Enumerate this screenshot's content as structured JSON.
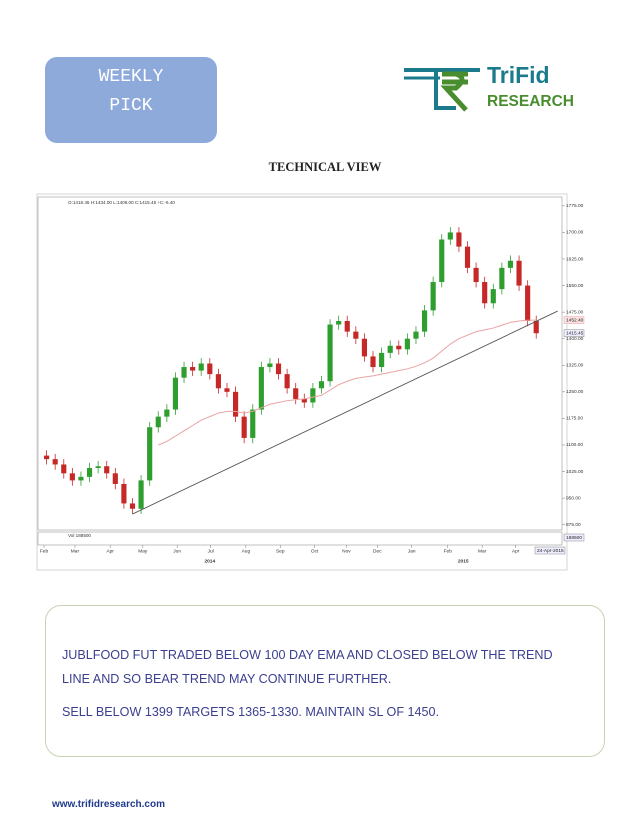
{
  "header": {
    "badge": [
      "WEEKLY",
      "PICK"
    ],
    "logo": {
      "name": "TriFid",
      "tagline": "RESEARCH"
    }
  },
  "section_title": "TECHNICAL VIEW",
  "chart_data": {
    "type": "candlestick",
    "info": "O:1418.45 H:1434.00 L:1406.00 C:1415.45 ÷C:-6.40",
    "open": [
      1070,
      1060,
      1045,
      1020,
      1000,
      1010,
      1035,
      1040,
      1020,
      990,
      935,
      920,
      1000,
      1150,
      1180,
      1200,
      1290,
      1320,
      1310,
      1330,
      1300,
      1260,
      1250,
      1180,
      1120,
      1200,
      1320,
      1330,
      1300,
      1260,
      1230,
      1220,
      1260,
      1280,
      1440,
      1450,
      1420,
      1400,
      1350,
      1320,
      1360,
      1380,
      1370,
      1400,
      1420,
      1480,
      1560,
      1680,
      1700,
      1660,
      1600,
      1560,
      1500,
      1540,
      1600,
      1620,
      1550,
      1450
    ],
    "high": [
      1085,
      1075,
      1060,
      1035,
      1025,
      1050,
      1055,
      1055,
      1035,
      1005,
      950,
      1015,
      1165,
      1195,
      1215,
      1305,
      1335,
      1335,
      1345,
      1345,
      1315,
      1275,
      1265,
      1195,
      1215,
      1335,
      1345,
      1345,
      1315,
      1275,
      1245,
      1275,
      1295,
      1455,
      1465,
      1465,
      1435,
      1415,
      1365,
      1375,
      1395,
      1395,
      1415,
      1435,
      1495,
      1575,
      1695,
      1715,
      1715,
      1675,
      1615,
      1575,
      1555,
      1615,
      1635,
      1635,
      1565,
      1465
    ],
    "low": [
      1045,
      1030,
      1005,
      985,
      985,
      995,
      1020,
      1005,
      975,
      920,
      905,
      905,
      985,
      1135,
      1165,
      1185,
      1275,
      1295,
      1295,
      1285,
      1245,
      1235,
      1165,
      1105,
      1105,
      1185,
      1305,
      1285,
      1245,
      1215,
      1205,
      1205,
      1245,
      1265,
      1425,
      1405,
      1385,
      1335,
      1305,
      1305,
      1345,
      1355,
      1355,
      1385,
      1405,
      1465,
      1545,
      1665,
      1645,
      1585,
      1545,
      1485,
      1485,
      1525,
      1585,
      1535,
      1435,
      1400
    ],
    "close": [
      1060,
      1045,
      1020,
      1000,
      1010,
      1035,
      1040,
      1020,
      990,
      935,
      920,
      1000,
      1150,
      1180,
      1200,
      1290,
      1320,
      1310,
      1330,
      1300,
      1260,
      1250,
      1180,
      1120,
      1200,
      1320,
      1330,
      1300,
      1260,
      1230,
      1220,
      1260,
      1280,
      1440,
      1450,
      1420,
      1400,
      1350,
      1320,
      1360,
      1380,
      1370,
      1400,
      1420,
      1480,
      1560,
      1680,
      1700,
      1660,
      1600,
      1560,
      1500,
      1540,
      1600,
      1620,
      1550,
      1450,
      1415.45
    ],
    "ema": [
      null,
      null,
      null,
      null,
      null,
      null,
      null,
      null,
      null,
      null,
      null,
      null,
      null,
      1100,
      1110,
      1125,
      1140,
      1155,
      1170,
      1180,
      1190,
      1195,
      1195,
      1190,
      1195,
      1205,
      1215,
      1220,
      1225,
      1228,
      1230,
      1235,
      1240,
      1255,
      1270,
      1280,
      1288,
      1292,
      1295,
      1300,
      1305,
      1310,
      1315,
      1322,
      1332,
      1345,
      1365,
      1385,
      1400,
      1410,
      1420,
      1425,
      1430,
      1438,
      1446,
      1450,
      1452,
      1452.4
    ],
    "ema_color": "#e9a3a3",
    "up_color": "#2e9e2e",
    "down_color": "#c62828",
    "trendline_color": "#555555",
    "trendline": [
      [
        10,
        905
      ],
      [
        59.5,
        1478
      ]
    ],
    "xlim": [
      -1,
      60
    ],
    "ylim": [
      860,
      1800
    ],
    "yticks": [
      {
        "value": 1775,
        "label": "1775.00"
      },
      {
        "value": 1700,
        "label": "1700.00"
      },
      {
        "value": 1625,
        "label": "1625.00"
      },
      {
        "value": 1550,
        "label": "1550.00"
      },
      {
        "value": 1475,
        "label": "1475.00"
      },
      {
        "value": 1400,
        "label": "1400.00"
      },
      {
        "value": 1325,
        "label": "1325.00"
      },
      {
        "value": 1250,
        "label": "1250.00"
      },
      {
        "value": 1175,
        "label": "1175.00"
      },
      {
        "value": 1100,
        "label": "1100.00"
      },
      {
        "value": 1025,
        "label": "1025.00"
      },
      {
        "value": 950,
        "label": "950.00"
      },
      {
        "value": 875,
        "label": "875.00"
      }
    ],
    "price_tags": [
      {
        "value": 1452.4,
        "label": "1452.40"
      },
      {
        "value": 1415.45,
        "label": "1415.45"
      }
    ],
    "xticks": [
      {
        "value": -0.3,
        "label": "Feb"
      },
      {
        "value": 3.3,
        "label": "Mar"
      },
      {
        "value": 7.4,
        "label": "Apr"
      },
      {
        "value": 11.2,
        "label": "May"
      },
      {
        "value": 15.2,
        "label": "Jun"
      },
      {
        "value": 19.1,
        "label": "Jul"
      },
      {
        "value": 23.2,
        "label": "Aug"
      },
      {
        "value": 27.2,
        "label": "Sep"
      },
      {
        "value": 31.2,
        "label": "Oct"
      },
      {
        "value": 34.9,
        "label": "Nov"
      },
      {
        "value": 38.5,
        "label": "Dec"
      },
      {
        "value": 42.5,
        "label": "Jan"
      },
      {
        "value": 46.7,
        "label": "Feb"
      },
      {
        "value": 50.7,
        "label": "Mar"
      },
      {
        "value": 54.6,
        "label": "Apr"
      }
    ],
    "years": [
      {
        "value": 19,
        "label": "2014"
      },
      {
        "value": 48.5,
        "label": "2015"
      }
    ],
    "volume_label": "Vol 188500",
    "volume_tag": "188500",
    "date_tag": "24-Apr-2015"
  },
  "commentary": [
    "JUBLFOOD  FUT TRADED BELOW 100 DAY EMA AND CLOSED BELOW THE TREND LINE AND SO BEAR TREND MAY CONTINUE FURTHER.",
    "SELL BELOW 1399 TARGETS 1365-1330. MAINTAIN SL OF 1450."
  ],
  "footer": "www.trifidresearch.com"
}
